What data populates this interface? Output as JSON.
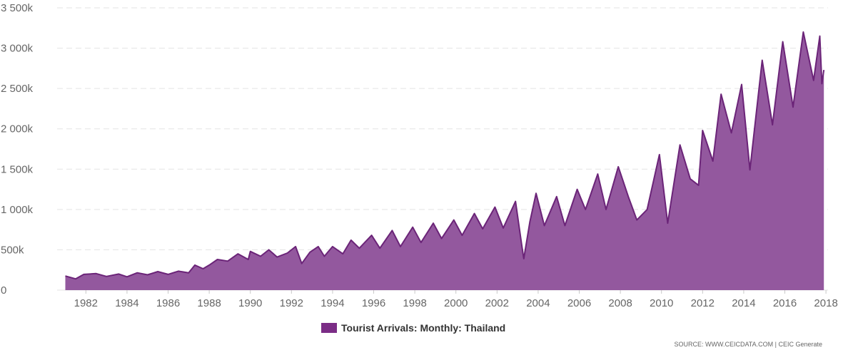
{
  "chart_data": {
    "type": "area",
    "series": [
      {
        "name": "Tourist Arrivals: Monthly: Thailand",
        "points": [
          [
            1981.0,
            175000
          ],
          [
            1981.5,
            140000
          ],
          [
            1981.9,
            195000
          ],
          [
            1982.5,
            205000
          ],
          [
            1983.0,
            170000
          ],
          [
            1983.6,
            200000
          ],
          [
            1984.0,
            165000
          ],
          [
            1984.5,
            215000
          ],
          [
            1985.0,
            190000
          ],
          [
            1985.5,
            230000
          ],
          [
            1986.0,
            195000
          ],
          [
            1986.5,
            235000
          ],
          [
            1987.0,
            215000
          ],
          [
            1987.3,
            310000
          ],
          [
            1987.7,
            265000
          ],
          [
            1988.0,
            310000
          ],
          [
            1988.4,
            380000
          ],
          [
            1988.9,
            360000
          ],
          [
            1989.4,
            450000
          ],
          [
            1989.9,
            380000
          ],
          [
            1990.0,
            480000
          ],
          [
            1990.5,
            420000
          ],
          [
            1990.9,
            500000
          ],
          [
            1991.3,
            410000
          ],
          [
            1991.8,
            460000
          ],
          [
            1992.2,
            540000
          ],
          [
            1992.5,
            330000
          ],
          [
            1992.9,
            470000
          ],
          [
            1993.3,
            540000
          ],
          [
            1993.6,
            420000
          ],
          [
            1994.0,
            540000
          ],
          [
            1994.5,
            450000
          ],
          [
            1994.9,
            620000
          ],
          [
            1995.3,
            520000
          ],
          [
            1995.9,
            680000
          ],
          [
            1996.3,
            520000
          ],
          [
            1996.9,
            740000
          ],
          [
            1997.3,
            540000
          ],
          [
            1997.9,
            780000
          ],
          [
            1998.3,
            590000
          ],
          [
            1998.9,
            830000
          ],
          [
            1999.3,
            640000
          ],
          [
            1999.9,
            870000
          ],
          [
            2000.3,
            680000
          ],
          [
            2000.9,
            950000
          ],
          [
            2001.3,
            760000
          ],
          [
            2001.9,
            1030000
          ],
          [
            2002.3,
            770000
          ],
          [
            2002.9,
            1100000
          ],
          [
            2003.2,
            560000
          ],
          [
            2003.3,
            390000
          ],
          [
            2003.6,
            850000
          ],
          [
            2003.9,
            1200000
          ],
          [
            2004.3,
            800000
          ],
          [
            2004.9,
            1160000
          ],
          [
            2005.3,
            800000
          ],
          [
            2005.9,
            1250000
          ],
          [
            2006.3,
            1000000
          ],
          [
            2006.9,
            1440000
          ],
          [
            2007.3,
            1000000
          ],
          [
            2007.9,
            1530000
          ],
          [
            2008.4,
            1150000
          ],
          [
            2008.8,
            870000
          ],
          [
            2009.3,
            1000000
          ],
          [
            2009.9,
            1680000
          ],
          [
            2010.3,
            830000
          ],
          [
            2010.9,
            1800000
          ],
          [
            2011.4,
            1380000
          ],
          [
            2011.8,
            1300000
          ],
          [
            2012.0,
            1980000
          ],
          [
            2012.5,
            1600000
          ],
          [
            2012.9,
            2430000
          ],
          [
            2013.4,
            1950000
          ],
          [
            2013.9,
            2550000
          ],
          [
            2014.3,
            1490000
          ],
          [
            2014.9,
            2850000
          ],
          [
            2015.4,
            2050000
          ],
          [
            2015.9,
            3080000
          ],
          [
            2016.4,
            2270000
          ],
          [
            2016.9,
            3200000
          ],
          [
            2017.4,
            2600000
          ],
          [
            2017.7,
            3150000
          ],
          [
            2017.8,
            2560000
          ],
          [
            2017.9,
            2730000
          ]
        ]
      }
    ],
    "x_ticks": [
      "1982",
      "1984",
      "1986",
      "1988",
      "1990",
      "1992",
      "1994",
      "1996",
      "1998",
      "2000",
      "2002",
      "2004",
      "2006",
      "2008",
      "2010",
      "2012",
      "2014",
      "2016",
      "2018"
    ],
    "y_ticks": [
      "0",
      "500k",
      "1 000k",
      "1 500k",
      "2 000k",
      "2 500k",
      "3 000k",
      "3 500k"
    ],
    "xlim": [
      1980.6,
      2018.1
    ],
    "ylim": [
      0,
      3500000
    ],
    "grid": "horizontal-dashed",
    "legend_position": "bottom-center",
    "colors": {
      "area_fill": "#93589e",
      "area_line": "#6b2478",
      "legend_swatch": "#7b2d86"
    }
  },
  "legend": {
    "label": "Tourist Arrivals: Monthly: Thailand"
  },
  "source": {
    "text": "SOURCE: WWW.CEICDATA.COM | CEIC Generate"
  }
}
